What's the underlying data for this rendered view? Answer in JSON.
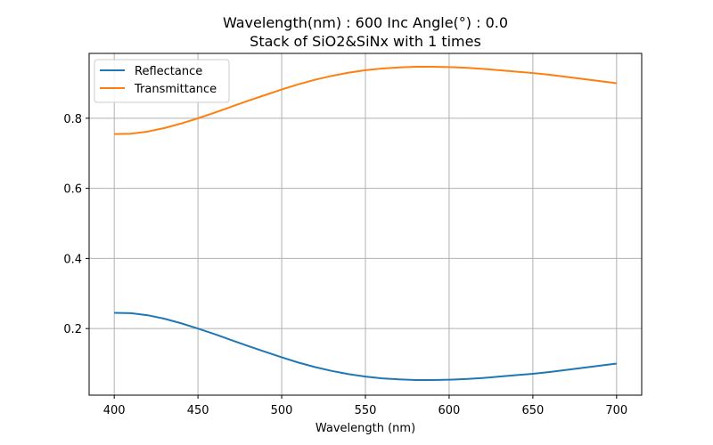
{
  "chart_data": {
    "type": "line",
    "title": "Wavelength(nm) : 600   Inc Angle(°) : 0.0",
    "subtitle": "Stack of SiO2&SiNx with 1 times",
    "xlabel": "Wavelength (nm)",
    "ylabel": "",
    "xlim": [
      385,
      715
    ],
    "ylim": [
      0.01,
      0.985
    ],
    "x_ticks": [
      400,
      450,
      500,
      550,
      600,
      650,
      700
    ],
    "y_ticks": [
      0.2,
      0.4,
      0.6,
      0.8
    ],
    "y_tick_labels": [
      "0.2",
      "0.4",
      "0.6",
      "0.8"
    ],
    "grid": true,
    "legend_position": "top-left",
    "x": [
      400,
      410,
      420,
      430,
      440,
      450,
      460,
      470,
      480,
      490,
      500,
      510,
      520,
      530,
      540,
      550,
      560,
      570,
      580,
      590,
      600,
      610,
      620,
      630,
      640,
      650,
      660,
      670,
      680,
      690,
      700
    ],
    "series": [
      {
        "name": "Reflectance",
        "color": "#1f77b4",
        "values": [
          0.245,
          0.244,
          0.238,
          0.228,
          0.215,
          0.2,
          0.184,
          0.167,
          0.15,
          0.134,
          0.118,
          0.103,
          0.09,
          0.079,
          0.07,
          0.063,
          0.058,
          0.055,
          0.053,
          0.053,
          0.054,
          0.056,
          0.059,
          0.063,
          0.067,
          0.071,
          0.076,
          0.082,
          0.088,
          0.094,
          0.1
        ]
      },
      {
        "name": "Transmittance",
        "color": "#ff7f0e",
        "values": [
          0.755,
          0.756,
          0.762,
          0.772,
          0.785,
          0.8,
          0.816,
          0.833,
          0.85,
          0.866,
          0.882,
          0.897,
          0.91,
          0.921,
          0.93,
          0.937,
          0.942,
          0.945,
          0.947,
          0.947,
          0.946,
          0.944,
          0.941,
          0.937,
          0.933,
          0.929,
          0.924,
          0.918,
          0.912,
          0.906,
          0.9
        ]
      }
    ]
  }
}
